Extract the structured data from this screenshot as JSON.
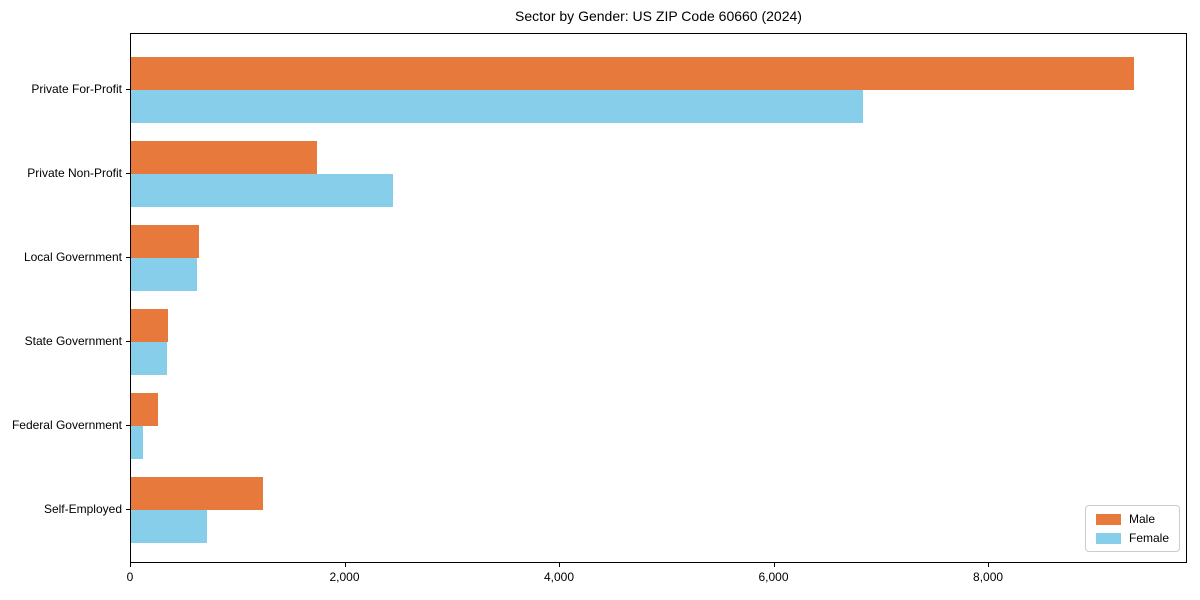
{
  "chart_data": {
    "type": "bar",
    "orientation": "horizontal",
    "title": "Sector by Gender: US ZIP Code 60660 (2024)",
    "categories": [
      "Private For-Profit",
      "Private Non-Profit",
      "Local Government",
      "State Government",
      "Federal Government",
      "Self-Employed"
    ],
    "series": [
      {
        "name": "Male",
        "color": "#e8793c",
        "values": [
          9370,
          1740,
          635,
          345,
          250,
          1230
        ]
      },
      {
        "name": "Female",
        "color": "#87ceeb",
        "values": [
          6835,
          2445,
          620,
          340,
          115,
          710
        ]
      }
    ],
    "xlabel": "",
    "ylabel": "",
    "xlim": [
      0,
      9855
    ],
    "xticks": [
      {
        "value": 0,
        "label": "0"
      },
      {
        "value": 2000,
        "label": "2,000"
      },
      {
        "value": 4000,
        "label": "4,000"
      },
      {
        "value": 6000,
        "label": "6,000"
      },
      {
        "value": 8000,
        "label": "8,000"
      }
    ],
    "grid": false,
    "legend_position": "lower right",
    "frame": "full-box",
    "colors": {
      "spine": "#000000",
      "legend_border": "#cccccc",
      "text": "#000000"
    }
  }
}
